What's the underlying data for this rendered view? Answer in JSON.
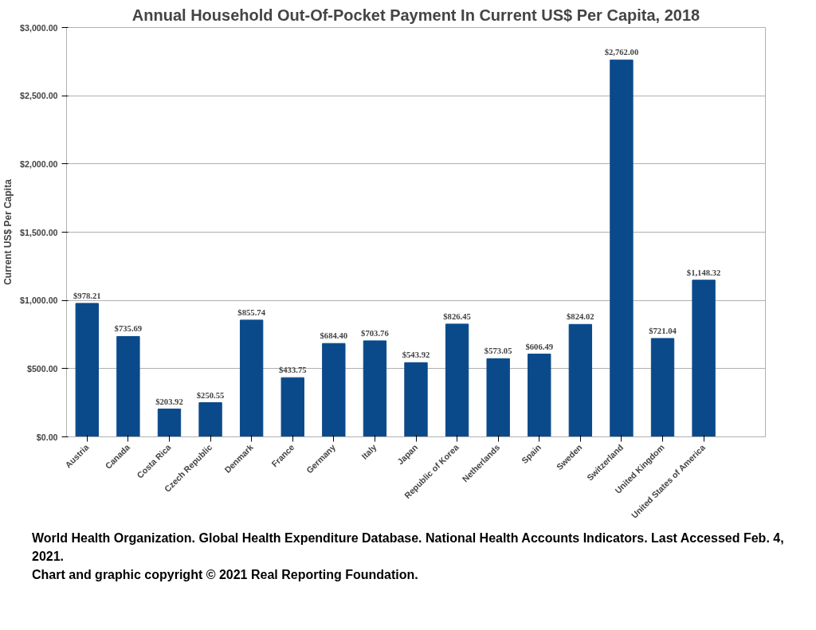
{
  "chart_data": {
    "type": "bar",
    "title": "Annual Household Out-Of-Pocket Payment In Current US$ Per Capita, 2018",
    "ylabel": "Current US$ Per Capita",
    "categories": [
      "Austria",
      "Canada",
      "Costa Rica",
      "Czech Republic",
      "Denmark",
      "France",
      "Germany",
      "Italy",
      "Japan",
      "Republic of Korea",
      "Netherlands",
      "Spain",
      "Sweden",
      "Switzerland",
      "United Kingdom",
      "United States of America",
      null
    ],
    "values": [
      978.21,
      735.69,
      203.92,
      250.55,
      855.74,
      433.75,
      684.4,
      703.76,
      543.92,
      826.45,
      573.05,
      606.49,
      824.02,
      2762.0,
      721.04,
      1148.32,
      null
    ],
    "value_labels": [
      "$978.21",
      "$735.69",
      "$203.92",
      "$250.55",
      "$855.74",
      "$433.75",
      "$684.40",
      "$703.76",
      "$543.92",
      "$826.45",
      "$573.05",
      "$606.49",
      "$824.02",
      "$2,762.00",
      "$721.04",
      "$1,148.32",
      null
    ],
    "color": "#0b4a8a",
    "ylim": [
      0,
      3000
    ],
    "yticks": [
      {
        "value": 0,
        "label": "$0.00"
      },
      {
        "value": 500,
        "label": "$500.00"
      },
      {
        "value": 1000,
        "label": "$1,000.00"
      },
      {
        "value": 1500,
        "label": "$1,500.00"
      },
      {
        "value": 2000,
        "label": "$2,000.00"
      },
      {
        "value": 2500,
        "label": "$2,500.00"
      },
      {
        "value": 3000,
        "label": "$3,000.00"
      }
    ],
    "grid": "y",
    "annotations": [
      "World Health Organization. Global Health Expenditure Database. National Health Accounts Indicators. Last Accessed Feb. 4, 2021.",
      "Chart and graphic copyright © 2021 Real Reporting Foundation."
    ]
  }
}
